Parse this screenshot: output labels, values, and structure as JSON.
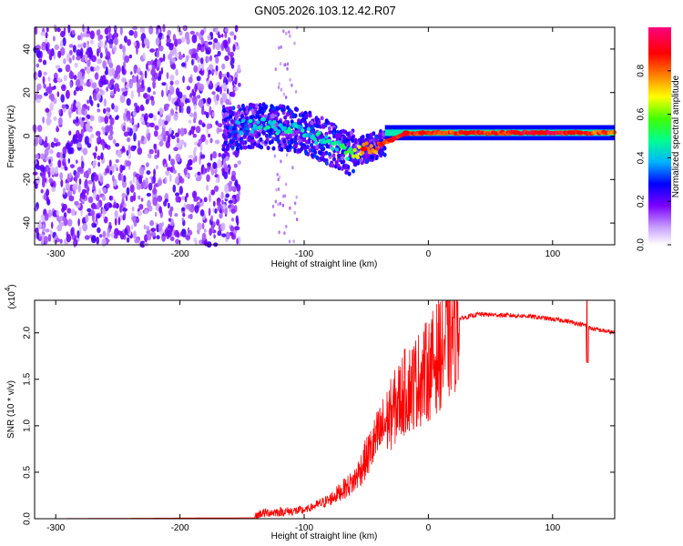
{
  "title": "GN05.2026.103.12.42.R07",
  "chart_data": [
    {
      "type": "heatmap",
      "xlabel": "Height of straight line (km)",
      "ylabel": "Frequency (Hz)",
      "xlim": [
        -317,
        150
      ],
      "ylim": [
        -50,
        50
      ],
      "x_ticks": [
        -300,
        -200,
        -100,
        0,
        100
      ],
      "y_ticks": [
        -40,
        -20,
        0,
        20,
        40
      ],
      "colorbar": {
        "label": "Normalized spectral amplitude",
        "range": [
          0,
          1
        ],
        "ticks": [
          "0.0",
          "0.2",
          "0.4",
          "0.6",
          "0.8"
        ],
        "colors": [
          "#ffffff",
          "#8a00ff",
          "#0000ff",
          "#00c8ff",
          "#00ff80",
          "#80ff00",
          "#ffff00",
          "#ff8000",
          "#ff0000",
          "#ff0080"
        ]
      },
      "signal_track": [
        {
          "x": -160,
          "y": 3,
          "amp": 0.3
        },
        {
          "x": -140,
          "y": 5,
          "amp": 0.45
        },
        {
          "x": -120,
          "y": 4,
          "amp": 0.45
        },
        {
          "x": -100,
          "y": 2,
          "amp": 0.4
        },
        {
          "x": -80,
          "y": -3,
          "amp": 0.45
        },
        {
          "x": -65,
          "y": -8,
          "amp": 0.5
        },
        {
          "x": -50,
          "y": -6,
          "amp": 0.75
        },
        {
          "x": -35,
          "y": -3,
          "amp": 0.85
        },
        {
          "x": -20,
          "y": 1,
          "amp": 0.9
        },
        {
          "x": 0,
          "y": 1.5,
          "amp": 0.85
        },
        {
          "x": 30,
          "y": 1.5,
          "amp": 0.85
        },
        {
          "x": 60,
          "y": 1.5,
          "amp": 0.85
        },
        {
          "x": 90,
          "y": 1.5,
          "amp": 0.95
        },
        {
          "x": 120,
          "y": 1.5,
          "amp": 0.85
        },
        {
          "x": 150,
          "y": 1.5,
          "amp": 0.8
        }
      ],
      "noise_region": [
        -317,
        -152
      ]
    },
    {
      "type": "line",
      "xlabel": "Height of straight line (km)",
      "ylabel": "SNR (10 * v/v)",
      "y_multiplier": "(x10",
      "y_multiplier_exp": "4",
      "y_multiplier_close": ")",
      "xlim": [
        -317,
        150
      ],
      "ylim": [
        0,
        23500
      ],
      "x_ticks": [
        -300,
        -200,
        -100,
        0,
        100
      ],
      "y_ticks": [
        "0.0",
        "0.5",
        "1.0",
        "1.5",
        "2.0"
      ],
      "y_tick_values": [
        0,
        5000,
        10000,
        15000,
        20000
      ],
      "color": "#ff0000",
      "series": [
        {
          "values": [
            {
              "x": -317,
              "y": 0
            },
            {
              "x": -140,
              "y": 100
            },
            {
              "x": -135,
              "y": 600
            },
            {
              "x": -100,
              "y": 900
            },
            {
              "x": -80,
              "y": 2000
            },
            {
              "x": -60,
              "y": 4000
            },
            {
              "x": -40,
              "y": 9000
            },
            {
              "x": -20,
              "y": 13500
            },
            {
              "x": 0,
              "y": 16000
            },
            {
              "x": 15,
              "y": 19000
            },
            {
              "x": 25,
              "y": 21500
            },
            {
              "x": 40,
              "y": 22000
            },
            {
              "x": 80,
              "y": 21800
            },
            {
              "x": 110,
              "y": 21300
            },
            {
              "x": 127,
              "y": 20800
            },
            {
              "x": 130,
              "y": 20500
            },
            {
              "x": 150,
              "y": 20000
            }
          ]
        }
      ]
    }
  ]
}
